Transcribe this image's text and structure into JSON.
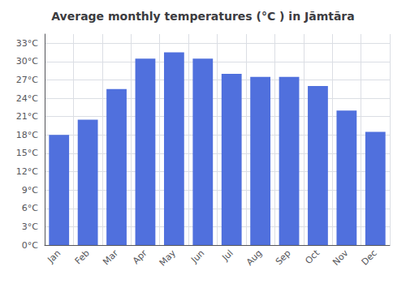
{
  "chart_data": {
    "type": "bar",
    "title": "Average monthly temperatures (°C ) in Jāmtāra",
    "categories": [
      "Jan",
      "Feb",
      "Mar",
      "Apr",
      "May",
      "Jun",
      "Jul",
      "Aug",
      "Sep",
      "Oct",
      "Nov",
      "Dec"
    ],
    "values": [
      18,
      20.5,
      25.5,
      30.5,
      31.5,
      30.5,
      28,
      27.5,
      27.5,
      26,
      22,
      18.5
    ],
    "ylim": [
      0,
      34.5
    ],
    "yticks": [
      {
        "value": 0,
        "label": "0°C"
      },
      {
        "value": 3,
        "label": "3°C"
      },
      {
        "value": 6,
        "label": "6°C"
      },
      {
        "value": 9,
        "label": "9°C"
      },
      {
        "value": 12,
        "label": "12°C"
      },
      {
        "value": 15,
        "label": "15°C"
      },
      {
        "value": 18,
        "label": "18°C"
      },
      {
        "value": 21,
        "label": "21°C"
      },
      {
        "value": 24,
        "label": "24°C"
      },
      {
        "value": 27,
        "label": "27°C"
      },
      {
        "value": 30,
        "label": "30°C"
      },
      {
        "value": 33,
        "label": "33°C"
      }
    ],
    "grid": true
  }
}
